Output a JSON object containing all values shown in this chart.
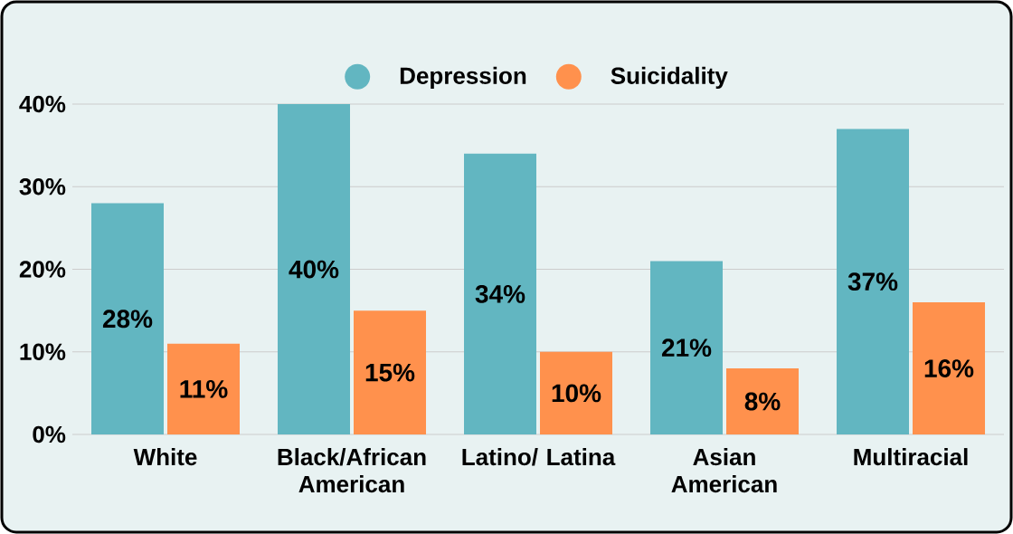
{
  "chart_data": {
    "type": "bar",
    "categories": [
      "White",
      "Black/African American",
      "Latino/ Latina",
      "Asian American",
      "Multiracial"
    ],
    "series": [
      {
        "name": "Depression",
        "color": "#62b6c1",
        "values": [
          28,
          40,
          34,
          21,
          37
        ],
        "value_labels": [
          "28%",
          "40%",
          "34%",
          "21%",
          "37%"
        ]
      },
      {
        "name": "Suicidality",
        "color": "#ff914d",
        "values": [
          11,
          15,
          10,
          8,
          16
        ],
        "value_labels": [
          "11%",
          "15%",
          "10%",
          "8%",
          "16%"
        ]
      }
    ],
    "ylim": [
      0,
      40
    ],
    "yticks": [
      {
        "value": 0,
        "label": "0%"
      },
      {
        "value": 10,
        "label": "10%"
      },
      {
        "value": 20,
        "label": "20%"
      },
      {
        "value": 30,
        "label": "30%"
      },
      {
        "value": 40,
        "label": "40%"
      }
    ],
    "grid": "y",
    "legend": "top"
  }
}
